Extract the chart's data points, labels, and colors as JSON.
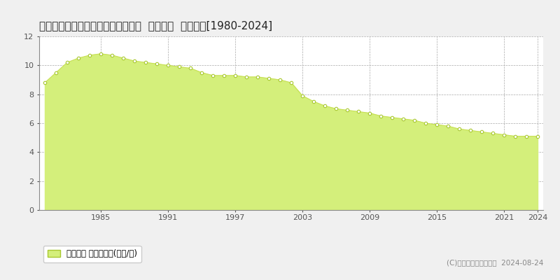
{
  "title": "北海道登別市常盤町１丁目３１番２  地価公示  地価推移[1980-2024]",
  "years": [
    1980,
    1981,
    1982,
    1983,
    1984,
    1985,
    1986,
    1987,
    1988,
    1989,
    1990,
    1991,
    1992,
    1993,
    1994,
    1995,
    1996,
    1997,
    1998,
    1999,
    2000,
    2001,
    2002,
    2003,
    2004,
    2005,
    2006,
    2007,
    2008,
    2009,
    2010,
    2011,
    2012,
    2013,
    2014,
    2015,
    2016,
    2017,
    2018,
    2019,
    2020,
    2021,
    2022,
    2023,
    2024
  ],
  "values": [
    8.8,
    9.5,
    10.2,
    10.5,
    10.7,
    10.8,
    10.7,
    10.5,
    10.3,
    10.2,
    10.1,
    10.0,
    9.9,
    9.8,
    9.5,
    9.3,
    9.3,
    9.3,
    9.2,
    9.2,
    9.1,
    9.0,
    8.8,
    7.9,
    7.5,
    7.2,
    7.0,
    6.9,
    6.8,
    6.7,
    6.5,
    6.4,
    6.3,
    6.2,
    6.0,
    5.9,
    5.8,
    5.6,
    5.5,
    5.4,
    5.3,
    5.2,
    5.1,
    5.1,
    5.1
  ],
  "fill_color": "#d4ef7b",
  "line_color": "#c8e055",
  "marker_facecolor": "#ffffff",
  "marker_edgecolor": "#a8c830",
  "bg_color": "#f0f0f0",
  "plot_bg_color": "#ffffff",
  "grid_color": "#aaaaaa",
  "ylim": [
    0,
    12
  ],
  "yticks": [
    0,
    2,
    4,
    6,
    8,
    10,
    12
  ],
  "xticks": [
    1985,
    1991,
    1997,
    2003,
    2009,
    2015,
    2021,
    2024
  ],
  "legend_label": "地価公示 平均坪単価(万円/坪)",
  "copyright_text": "(C)土地価格ドットコム  2024-08-24",
  "title_fontsize": 11,
  "tick_fontsize": 8,
  "legend_fontsize": 8.5,
  "copyright_fontsize": 7.5
}
